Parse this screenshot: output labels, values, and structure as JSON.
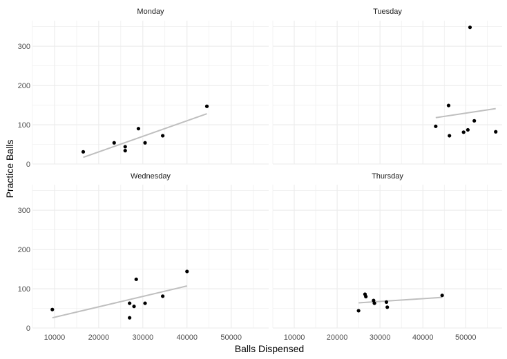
{
  "chart_data": {
    "type": "scatter",
    "xlabel": "Balls Dispensed",
    "ylabel": "Practice Balls",
    "xlim": [
      5000,
      58500
    ],
    "ylim": [
      0,
      365
    ],
    "x_ticks": [
      10000,
      20000,
      30000,
      40000,
      50000
    ],
    "y_ticks": [
      0,
      100,
      200,
      300
    ],
    "grid": true,
    "point_color": "#000000",
    "trend_color": "#bfbfbf",
    "grid_color": "#ebebeb",
    "panels": [
      {
        "label": "Monday",
        "points": [
          [
            16500,
            31
          ],
          [
            23500,
            54
          ],
          [
            26000,
            44
          ],
          [
            26000,
            34
          ],
          [
            29000,
            90
          ],
          [
            30500,
            54
          ],
          [
            34500,
            72
          ],
          [
            44500,
            147
          ]
        ],
        "trend": [
          [
            16500,
            17
          ],
          [
            44500,
            128
          ]
        ]
      },
      {
        "label": "Tuesday",
        "points": [
          [
            43000,
            96
          ],
          [
            46000,
            149
          ],
          [
            46200,
            72
          ],
          [
            49500,
            81
          ],
          [
            50500,
            87
          ],
          [
            51000,
            348
          ],
          [
            52000,
            110
          ],
          [
            57000,
            82
          ]
        ],
        "trend": [
          [
            43000,
            118
          ],
          [
            57000,
            141
          ]
        ]
      },
      {
        "label": "Wednesday",
        "points": [
          [
            9500,
            47
          ],
          [
            27000,
            63
          ],
          [
            27000,
            26
          ],
          [
            28000,
            55
          ],
          [
            28500,
            124
          ],
          [
            30500,
            63
          ],
          [
            34500,
            81
          ],
          [
            40000,
            144
          ]
        ],
        "trend": [
          [
            9500,
            26
          ],
          [
            40000,
            107
          ]
        ]
      },
      {
        "label": "Thursday",
        "points": [
          [
            25000,
            44
          ],
          [
            26500,
            86
          ],
          [
            26700,
            80
          ],
          [
            28500,
            70
          ],
          [
            28700,
            63
          ],
          [
            31500,
            66
          ],
          [
            31700,
            53
          ],
          [
            44500,
            83
          ]
        ],
        "trend": [
          [
            25000,
            64
          ],
          [
            44500,
            78
          ]
        ]
      }
    ]
  }
}
